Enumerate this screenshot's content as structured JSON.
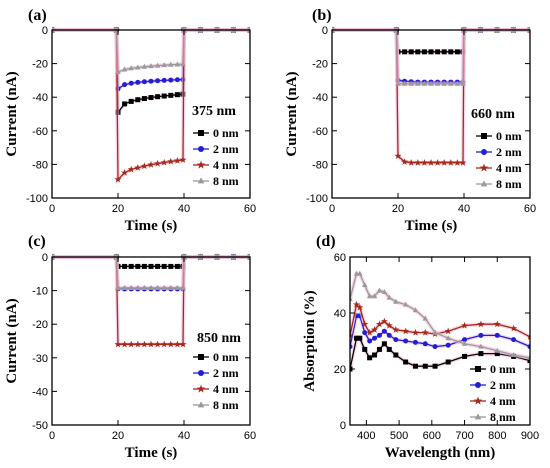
{
  "colors": {
    "s0": "#000000",
    "s2": "#1f1fd6",
    "s4": "#a52a1a",
    "s8": "#9a9a9a",
    "glow": "#f2b8d8"
  },
  "chart_data": [
    {
      "id": "a",
      "type": "line",
      "panel_label": "(a)",
      "wavelength_label": "375 nm",
      "xlabel": "Time (s)",
      "ylabel": "Current (nA)",
      "xlim": [
        0,
        60
      ],
      "ylim": [
        -100,
        0
      ],
      "xticks": [
        "0",
        "20",
        "40",
        "60"
      ],
      "yticks": [
        "0",
        "-20",
        "-40",
        "-60",
        "-80",
        "-100"
      ],
      "legend_position": "right",
      "series": [
        {
          "name": "0 nm",
          "marker": "square",
          "color": "#000000",
          "x": [
            0,
            19.5,
            20,
            22,
            24,
            26,
            28,
            30,
            32,
            34,
            36,
            38,
            39.7,
            40,
            45,
            50,
            55,
            60
          ],
          "y": [
            0,
            0,
            -49,
            -44,
            -42.5,
            -41.5,
            -40.8,
            -40.2,
            -39.7,
            -39.3,
            -38.9,
            -38.5,
            -38.2,
            0,
            0,
            0,
            0,
            0
          ]
        },
        {
          "name": "2 nm",
          "marker": "circle",
          "color": "#1f1fd6",
          "x": [
            0,
            19.5,
            20,
            22,
            24,
            26,
            28,
            30,
            32,
            34,
            36,
            38,
            39.7,
            40,
            45,
            50,
            55,
            60
          ],
          "y": [
            0,
            0,
            -35,
            -32.5,
            -31.7,
            -31.2,
            -30.8,
            -30.5,
            -30.2,
            -30,
            -29.8,
            -29.6,
            -29.5,
            0,
            0,
            0,
            0,
            0
          ]
        },
        {
          "name": "4 nm",
          "marker": "star",
          "color": "#a52a1a",
          "x": [
            0,
            19.5,
            20,
            22,
            24,
            26,
            28,
            30,
            32,
            34,
            36,
            38,
            39.7,
            40,
            45,
            50,
            55,
            60
          ],
          "y": [
            0,
            0,
            -89,
            -85,
            -83,
            -82,
            -81,
            -80.2,
            -79.5,
            -78.9,
            -78.3,
            -77.8,
            -77.3,
            0,
            0,
            0,
            0,
            0
          ]
        },
        {
          "name": "8 nm",
          "marker": "triangle",
          "color": "#9a9a9a",
          "x": [
            0,
            19.5,
            20,
            22,
            24,
            26,
            28,
            30,
            32,
            34,
            36,
            38,
            39.7,
            40,
            45,
            50,
            55,
            60
          ],
          "y": [
            0,
            0,
            -25,
            -23.5,
            -22.8,
            -22.3,
            -21.9,
            -21.5,
            -21.2,
            -20.9,
            -20.7,
            -20.5,
            -20.3,
            0,
            0,
            0,
            0,
            0
          ]
        }
      ]
    },
    {
      "id": "b",
      "type": "line",
      "panel_label": "(b)",
      "wavelength_label": "660 nm",
      "xlabel": "Time (s)",
      "ylabel": "Current (nA)",
      "xlim": [
        0,
        60
      ],
      "ylim": [
        -100,
        0
      ],
      "xticks": [
        "0",
        "20",
        "40",
        "60"
      ],
      "yticks": [
        "0",
        "-20",
        "-40",
        "-60",
        "-80",
        "-100"
      ],
      "legend_position": "right",
      "series": [
        {
          "name": "0 nm",
          "marker": "square",
          "color": "#000000",
          "x": [
            0,
            19.5,
            20,
            22,
            24,
            26,
            28,
            30,
            32,
            34,
            36,
            38,
            39.7,
            40,
            45,
            50,
            55,
            60
          ],
          "y": [
            0,
            0,
            -13,
            -13,
            -13,
            -13,
            -13,
            -13,
            -13,
            -13,
            -13,
            -13,
            -13,
            0,
            0,
            0,
            0,
            0
          ]
        },
        {
          "name": "2 nm",
          "marker": "circle",
          "color": "#1f1fd6",
          "x": [
            0,
            19.5,
            20,
            22,
            24,
            26,
            28,
            30,
            32,
            34,
            36,
            38,
            39.7,
            40,
            45,
            50,
            55,
            60
          ],
          "y": [
            0,
            0,
            -30,
            -30.5,
            -30.8,
            -31,
            -31,
            -31,
            -31,
            -31,
            -31,
            -31,
            -31,
            0,
            0,
            0,
            0,
            0
          ]
        },
        {
          "name": "4 nm",
          "marker": "star",
          "color": "#a52a1a",
          "x": [
            0,
            19.5,
            20,
            22,
            24,
            26,
            28,
            30,
            32,
            34,
            36,
            38,
            39.7,
            40,
            45,
            50,
            55,
            60
          ],
          "y": [
            0,
            0,
            -75,
            -78.5,
            -79,
            -79,
            -79,
            -79,
            -79,
            -79,
            -79,
            -79,
            -79,
            0,
            0,
            0,
            0,
            0
          ]
        },
        {
          "name": "8 nm",
          "marker": "triangle",
          "color": "#9a9a9a",
          "x": [
            0,
            19.5,
            20,
            22,
            24,
            26,
            28,
            30,
            32,
            34,
            36,
            38,
            39.7,
            40,
            45,
            50,
            55,
            60
          ],
          "y": [
            0,
            0,
            -32,
            -32,
            -32,
            -32,
            -32,
            -32,
            -32,
            -32,
            -32,
            -32,
            -32,
            0,
            0,
            0,
            0,
            0
          ]
        }
      ]
    },
    {
      "id": "c",
      "type": "line",
      "panel_label": "(c)",
      "wavelength_label": "850 nm",
      "xlabel": "Time (s)",
      "ylabel": "Current (nA)",
      "xlim": [
        0,
        60
      ],
      "ylim": [
        -50,
        0
      ],
      "xticks": [
        "0",
        "20",
        "40",
        "60"
      ],
      "yticks": [
        "0",
        "-10",
        "-20",
        "-30",
        "-40",
        "-50"
      ],
      "legend_position": "right",
      "series": [
        {
          "name": "0 nm",
          "marker": "square",
          "color": "#000000",
          "x": [
            0,
            19.5,
            20,
            22,
            24,
            26,
            28,
            30,
            32,
            34,
            36,
            38,
            39.7,
            40,
            45,
            50,
            55,
            60
          ],
          "y": [
            0,
            0,
            -2.8,
            -2.8,
            -2.8,
            -2.8,
            -2.8,
            -2.8,
            -2.8,
            -2.8,
            -2.8,
            -2.8,
            -2.8,
            0,
            0,
            0,
            0,
            0
          ]
        },
        {
          "name": "2 nm",
          "marker": "circle",
          "color": "#1f1fd6",
          "x": [
            0,
            19.5,
            20,
            22,
            24,
            26,
            28,
            30,
            32,
            34,
            36,
            38,
            39.7,
            40,
            45,
            50,
            55,
            60
          ],
          "y": [
            0,
            0,
            -9.5,
            -9.5,
            -9.5,
            -9.5,
            -9.5,
            -9.5,
            -9.5,
            -9.5,
            -9.5,
            -9.5,
            -9.5,
            0,
            0,
            0,
            0,
            0
          ]
        },
        {
          "name": "4 nm",
          "marker": "star",
          "color": "#a52a1a",
          "x": [
            0,
            19.5,
            20,
            22,
            24,
            26,
            28,
            30,
            32,
            34,
            36,
            38,
            39.7,
            40,
            45,
            50,
            55,
            60
          ],
          "y": [
            0,
            0,
            -26,
            -26,
            -26,
            -26,
            -26,
            -26,
            -26,
            -26,
            -26,
            -26,
            -26,
            0,
            0,
            0,
            0,
            0
          ]
        },
        {
          "name": "8 nm",
          "marker": "triangle",
          "color": "#9a9a9a",
          "x": [
            0,
            19.5,
            20,
            22,
            24,
            26,
            28,
            30,
            32,
            34,
            36,
            38,
            39.7,
            40,
            45,
            50,
            55,
            60
          ],
          "y": [
            0,
            0,
            -9.2,
            -9.2,
            -9.2,
            -9.2,
            -9.2,
            -9.2,
            -9.2,
            -9.2,
            -9.2,
            -9.2,
            -9.2,
            0,
            0,
            0,
            0,
            0
          ]
        }
      ]
    },
    {
      "id": "d",
      "type": "line",
      "panel_label": "(d)",
      "wavelength_label": "",
      "xlabel": "Wavelength (nm)",
      "ylabel": "Absorption (%)",
      "xlim": [
        350,
        900
      ],
      "ylim": [
        0,
        60
      ],
      "xticks": [
        "400",
        "500",
        "600",
        "700",
        "800",
        "900"
      ],
      "yticks": [
        "0",
        "20",
        "40",
        "60"
      ],
      "legend_position": "bottom-right",
      "series": [
        {
          "name": "0 nm",
          "marker": "square",
          "color": "#000000",
          "x": [
            350,
            370,
            380,
            395,
            410,
            425,
            440,
            455,
            470,
            490,
            520,
            550,
            580,
            610,
            650,
            700,
            750,
            800,
            850,
            900
          ],
          "y": [
            20,
            31,
            31,
            27,
            24,
            25,
            27,
            29,
            27,
            25,
            22.5,
            21,
            21,
            21,
            22.5,
            24.5,
            25.5,
            25.5,
            24.5,
            23
          ]
        },
        {
          "name": "2 nm",
          "marker": "circle",
          "color": "#1f1fd6",
          "x": [
            350,
            370,
            380,
            395,
            410,
            425,
            440,
            455,
            470,
            490,
            520,
            550,
            580,
            610,
            650,
            700,
            750,
            800,
            850,
            900
          ],
          "y": [
            28,
            39,
            39,
            33,
            30,
            31,
            32,
            33.5,
            32,
            30.5,
            30,
            29.5,
            29,
            28,
            28.5,
            30.5,
            32,
            32,
            30.5,
            28
          ]
        },
        {
          "name": "4 nm",
          "marker": "star",
          "color": "#a52a1a",
          "x": [
            350,
            370,
            380,
            395,
            410,
            425,
            440,
            455,
            470,
            490,
            520,
            550,
            580,
            610,
            650,
            700,
            750,
            800,
            850,
            900
          ],
          "y": [
            32,
            43,
            42,
            36,
            33,
            34,
            36,
            37,
            35.5,
            34,
            33.5,
            33,
            33,
            32.5,
            33.5,
            35.5,
            36,
            36,
            34.5,
            31.5
          ]
        },
        {
          "name": "8 nm",
          "marker": "triangle",
          "color": "#9a9a9a",
          "x": [
            350,
            370,
            380,
            395,
            410,
            425,
            440,
            455,
            470,
            490,
            520,
            550,
            580,
            610,
            650,
            700,
            750,
            800,
            850,
            900
          ],
          "y": [
            45,
            54,
            54,
            50,
            46,
            46,
            48,
            47.5,
            45.5,
            44,
            43,
            41,
            38,
            33,
            31,
            29,
            28,
            26.5,
            25,
            24
          ]
        }
      ]
    }
  ]
}
